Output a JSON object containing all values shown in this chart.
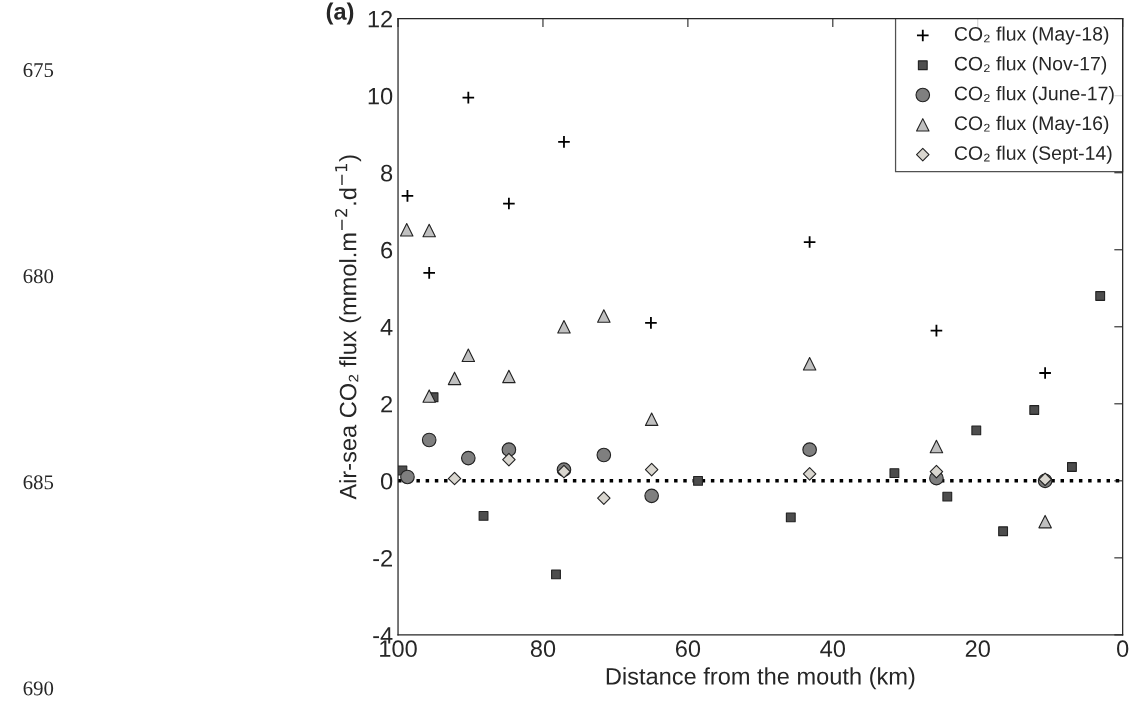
{
  "chart_data": {
    "type": "scatter",
    "title": "(a)",
    "xlabel": "Distance from the mouth (km)",
    "ylabel": "Air-sea CO₂ flux (mmol.m$^{−2}$.d$^{−1}$)",
    "xlim": [
      100,
      0
    ],
    "xticks": [
      100,
      80,
      60,
      40,
      20,
      0
    ],
    "ylim": [
      -4,
      12
    ],
    "yticks": [
      -4,
      -2,
      0,
      2,
      4,
      6,
      8,
      10,
      12
    ],
    "grid": false,
    "legend": "top right",
    "ref_lines": [
      {
        "axis": "y",
        "value": 0,
        "color": "#000000",
        "line_style": "dotted"
      }
    ],
    "annotations": [
      "675",
      "680",
      "685",
      "690"
    ],
    "series": [
      {
        "name": "CO₂ flux (May-18)",
        "color": "#000000",
        "marker": "cross",
        "x": [
          98.7,
          95.7,
          90.3,
          84.7,
          77.1,
          65.1,
          43.2,
          25.7,
          10.7
        ],
        "values": [
          7.4,
          5.4,
          9.95,
          7.2,
          8.8,
          4.1,
          6.2,
          3.9,
          2.8
        ]
      },
      {
        "name": "CO₂ flux (Nov-17)",
        "color": "#4d4d4d",
        "marker": "square",
        "x": [
          99.4,
          95.1,
          88.2,
          78.2,
          58.6,
          45.8,
          31.5,
          24.2,
          20.2,
          16.5,
          12.2,
          7.0,
          3.1
        ],
        "values": [
          0.27,
          2.17,
          -0.91,
          -2.43,
          0.0,
          -0.95,
          0.2,
          -0.41,
          1.31,
          -1.31,
          1.84,
          0.36,
          4.8
        ]
      },
      {
        "name": "CO₂ flux (June-17)",
        "color": "#7f7f7f",
        "marker": "circle",
        "x": [
          98.7,
          95.7,
          90.3,
          84.7,
          77.1,
          71.6,
          65.0,
          43.2,
          25.7,
          10.7
        ],
        "values": [
          0.1,
          1.06,
          0.59,
          0.81,
          0.29,
          0.67,
          -0.39,
          0.81,
          0.07,
          0.0
        ]
      },
      {
        "name": "CO₂ flux (May-16)",
        "color": "#c0c0c0",
        "marker": "triangle",
        "x": [
          98.8,
          95.7,
          95.7,
          92.2,
          90.3,
          84.7,
          77.1,
          71.6,
          65.0,
          43.2,
          25.7,
          10.7
        ],
        "values": [
          6.52,
          6.5,
          2.2,
          2.66,
          3.26,
          2.71,
          4.0,
          4.28,
          1.6,
          3.04,
          0.89,
          -1.06
        ]
      },
      {
        "name": "CO₂ flux (Sept-14)",
        "color": "#d9d6cf",
        "marker": "diamond",
        "x": [
          92.2,
          84.7,
          77.1,
          71.6,
          65.0,
          43.2,
          25.7,
          10.7
        ],
        "values": [
          0.06,
          0.55,
          0.24,
          -0.45,
          0.29,
          0.18,
          0.24,
          0.04
        ]
      }
    ]
  }
}
